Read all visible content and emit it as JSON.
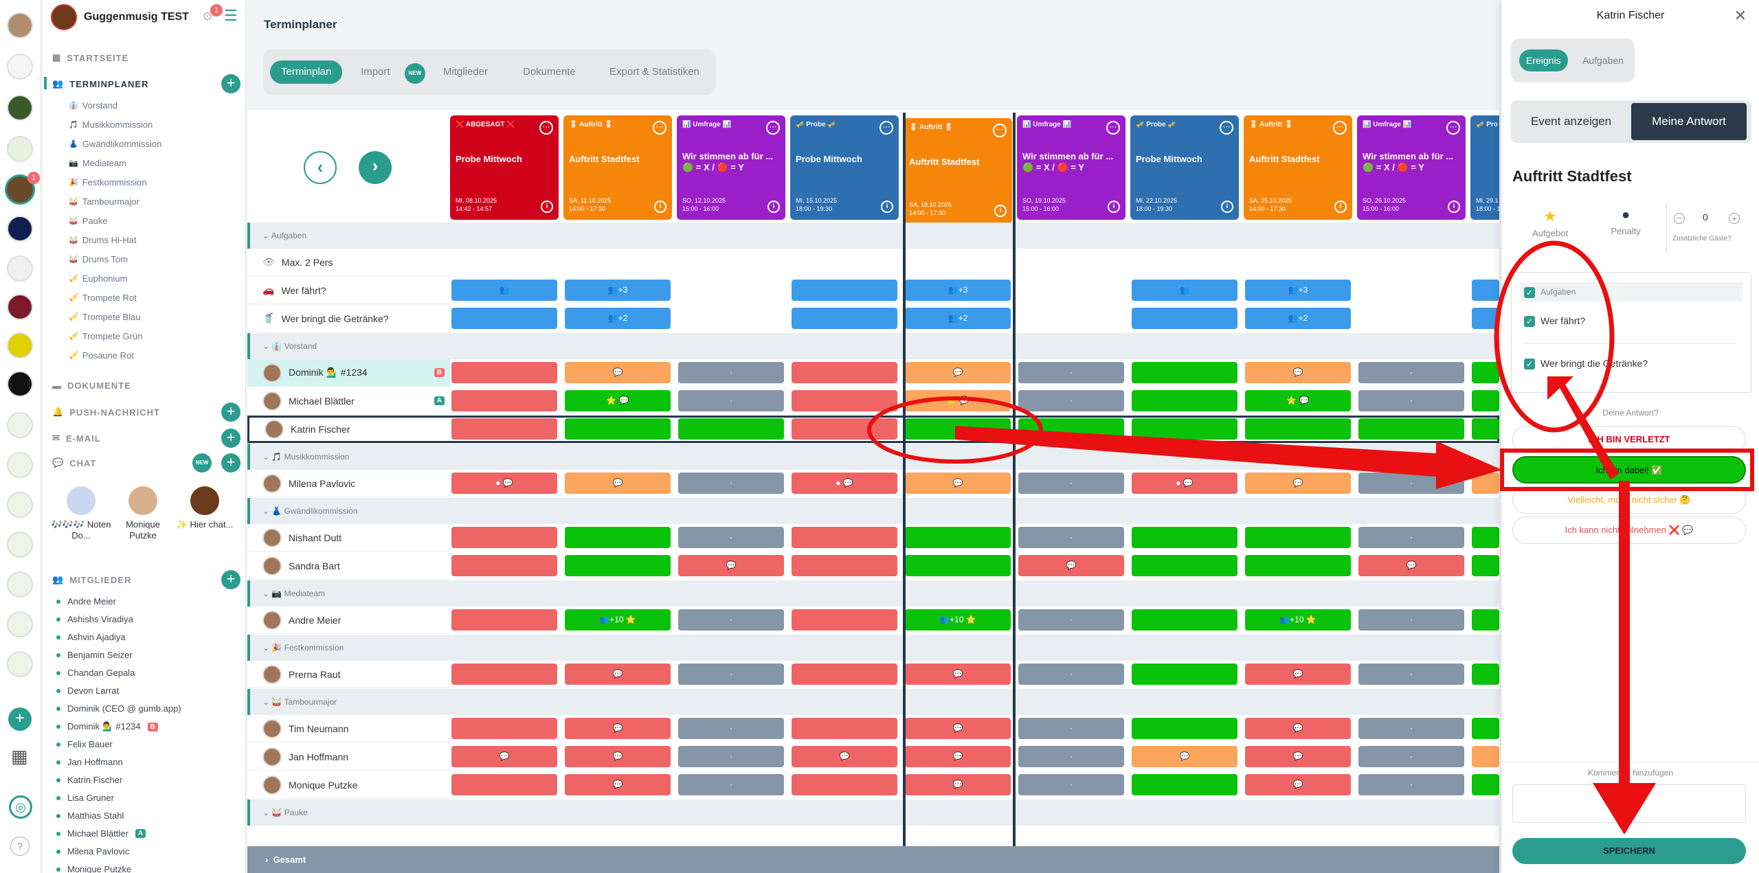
{
  "sidebar": {
    "app_name": "Guggenmusig TEST",
    "notification_count": "1",
    "nav": {
      "startseite": "STARTSEITE",
      "terminplaner": "TERMINPLANER",
      "dokumente": "DOKUMENTE",
      "push": "PUSH-NACHRICHT",
      "email": "E-MAIL",
      "chat": "CHAT",
      "chat_badge": "NEW",
      "mitglieder": "MITGLIEDER"
    },
    "sub_items": [
      "Vorstand",
      "Musikkommission",
      "Gwändlikommission",
      "Mediateam",
      "Festkommission",
      "Tambourmajor",
      "Pauke",
      "Drums Hi-Hat",
      "Drums Tom",
      "Euphonium",
      "Trompete Rot",
      "Trompete Blau",
      "Trompete Grün",
      "Posaune Rot"
    ],
    "chats": [
      {
        "name": "🎶🎶🎶 Noten Do..."
      },
      {
        "name": "Monique Putzke"
      },
      {
        "name": "✨ Hier chat..."
      }
    ],
    "members": [
      "Andre Meier",
      "Ashishs Viradiya",
      "Ashvin Ajadiya",
      "Benjamin Seizer",
      "Chandan Gepala",
      "Devon Larrat",
      "Dominik (CEO @ gumb.app)",
      "Dominik 💁‍♂️ #1234",
      "Felix Bauer",
      "Jan Hoffmann",
      "Katrin Fischer",
      "Lisa Gruner",
      "Matthias Stahl",
      "Michael Blättler",
      "Milena Pavlovic",
      "Monique Putzke"
    ],
    "member_tags": {
      "Dominik 💁‍♂️ #1234": "B",
      "Michael Blättler": "A"
    },
    "rail_badge": "1"
  },
  "main": {
    "title": "Terminplaner",
    "tabs": [
      "Terminplan",
      "Import",
      "Mitglieder",
      "Dokumente",
      "Export & Statistiken"
    ],
    "import_badge": "NEW"
  },
  "events": [
    {
      "tag": "❌ ABGESAGT ❌",
      "name": "Probe Mittwoch",
      "date": "MI, 08.10.2025",
      "time": "14:42 - 14:57",
      "color": "#d0021b"
    },
    {
      "tag": "🎖 Auftritt 🎖",
      "name": "Auftritt Stadtfest",
      "date": "SA, 11.10.2025",
      "time": "14:00 - 17:30",
      "color": "#f5860a"
    },
    {
      "tag": "📊 Umfrage 📊",
      "name": "Wir stimmen ab für ...\n🟢 = X / 🔴 = Y",
      "date": "SO, 12.10.2025",
      "time": "15:00 - 16:00",
      "color": "#9b1fc9"
    },
    {
      "tag": "🎺 Probe 🎺",
      "name": "Probe Mittwoch",
      "date": "MI, 15.10.2025",
      "time": "18:00 - 19:30",
      "color": "#2e6fb0"
    },
    {
      "tag": "🎖 Auftritt 🎖",
      "name": "Auftritt Stadtfest",
      "date": "SA, 18.10.2025",
      "time": "14:00 - 17:30",
      "color": "#f5860a"
    },
    {
      "tag": "📊 Umfrage 📊",
      "name": "Wir stimmen ab für ...\n🟢 = X / 🔴 = Y",
      "date": "SO, 19.10.2025",
      "time": "15:00 - 16:00",
      "color": "#9b1fc9"
    },
    {
      "tag": "🎺 Probe 🎺",
      "name": "Probe Mittwoch",
      "date": "MI, 22.10.2025",
      "time": "18:00 - 19:30",
      "color": "#2e6fb0"
    },
    {
      "tag": "🎖 Auftritt 🎖",
      "name": "Auftritt Stadtfest",
      "date": "SA, 25.10.2025",
      "time": "14:00 - 17:30",
      "color": "#f5860a"
    },
    {
      "tag": "📊 Umfrage 📊",
      "name": "Wir stimmen ab für ...\n🟢 = X / 🔴 = Y",
      "date": "SO, 26.10.2025",
      "time": "15:00 - 16:00",
      "color": "#9b1fc9"
    },
    {
      "tag": "🎺 Pro",
      "name": "",
      "date": "MI, 29.1",
      "time": "18:00 - 1",
      "color": "#2e6fb0"
    }
  ],
  "rows": [
    {
      "type": "group",
      "label": "Aufgaben"
    },
    {
      "type": "task",
      "label": "Max. 2 Pers",
      "cells": [
        "",
        "",
        "",
        "",
        "",
        "",
        "",
        "",
        "",
        ""
      ]
    },
    {
      "type": "task",
      "label": "Wer fährt?",
      "cells": [
        "b:👥",
        "b:👥+3",
        "",
        "b:",
        "b:👥+3",
        "",
        "b:👥",
        "b:👥+3",
        "",
        "b:"
      ]
    },
    {
      "type": "task",
      "label": "Wer bringt die Getränke?",
      "cells": [
        "b:",
        "b:👥+2",
        "",
        "b:",
        "b:👥+2",
        "",
        "b:",
        "b:👥+2",
        "",
        "b:"
      ]
    },
    {
      "type": "group",
      "label": "👔 Vorstand"
    },
    {
      "type": "member",
      "label": "Dominik 💁‍♂️ #1234",
      "tag": "B",
      "highlight": true,
      "cells": [
        "r:",
        "o:💬",
        "gy:·",
        "r:",
        "o:💬",
        "gy:·",
        "g:",
        "o:💬",
        "gy:·",
        "g:"
      ]
    },
    {
      "type": "member",
      "label": "Michael Blättler",
      "tag": "A",
      "cells": [
        "r:",
        "g:⭐ 💬",
        "gy:·",
        "r:",
        "o:⭐ 💬",
        "gy:·",
        "g:",
        "g:⭐ 💬",
        "gy:·",
        "g:"
      ]
    },
    {
      "type": "member",
      "label": "Katrin Fischer",
      "selected": true,
      "cells": [
        "r:",
        "g:",
        "g:",
        "r:",
        "g:",
        "g:",
        "g:",
        "g:",
        "g:",
        "g:"
      ]
    },
    {
      "type": "group",
      "label": "🎵 Musikkommission"
    },
    {
      "type": "member",
      "label": "Milena Pavlovic",
      "cells": [
        "r:● 💬",
        "o:💬",
        "gy:·",
        "r:● 💬",
        "o:💬",
        "gy:·",
        "r:● 💬",
        "o:💬",
        "gy:·",
        "o:"
      ]
    },
    {
      "type": "group",
      "label": "👗 Gwändlikommission"
    },
    {
      "type": "member",
      "label": "Nishant Dutt",
      "cells": [
        "r:",
        "g:",
        "gy:·",
        "r:",
        "g:",
        "gy:·",
        "g:",
        "g:",
        "gy:·",
        "g:"
      ]
    },
    {
      "type": "member",
      "label": "Sandra Bart",
      "cells": [
        "r:",
        "g:",
        "r:💬",
        "r:",
        "g:",
        "r:💬",
        "g:",
        "g:",
        "r:💬",
        "g:"
      ]
    },
    {
      "type": "group",
      "label": "📷 Mediateam"
    },
    {
      "type": "member",
      "label": "Andre Meier",
      "cells": [
        "r:",
        "g:👥+10 ⭐",
        "gy:·",
        "r:",
        "g:👥+10 ⭐",
        "gy:·",
        "g:",
        "g:👥+10 ⭐",
        "gy:·",
        "g:"
      ]
    },
    {
      "type": "group",
      "label": "🎉 Festkommission"
    },
    {
      "type": "member",
      "label": "Prerna Raut",
      "cells": [
        "r:",
        "r:💬",
        "gy:·",
        "r:",
        "r:💬",
        "gy:·",
        "g:",
        "r:💬",
        "gy:·",
        "g:"
      ]
    },
    {
      "type": "group",
      "label": "🥁 Tambourmajor"
    },
    {
      "type": "member",
      "label": "Tim Neumann",
      "cells": [
        "r:",
        "r:💬",
        "gy:·",
        "r:",
        "r:💬",
        "gy:·",
        "g:",
        "r:💬",
        "gy:·",
        "g:"
      ]
    },
    {
      "type": "member",
      "label": "Jan Hoffmann",
      "cells": [
        "r:💬",
        "r:💬",
        "gy:·",
        "r:💬",
        "r:💬",
        "gy:·",
        "o:💬",
        "r:💬",
        "gy:·",
        "o:"
      ]
    },
    {
      "type": "member",
      "label": "Monique Putzke",
      "cells": [
        "r:",
        "r:💬",
        "gy:·",
        "r:",
        "r:💬",
        "gy:·",
        "g:",
        "r:💬",
        "gy:·",
        "g:"
      ]
    },
    {
      "type": "group",
      "label": "🥁 Pauke"
    }
  ],
  "footer_label": "Gesamt",
  "panel": {
    "title": "Katrin Fischer",
    "tabs": [
      "Ereignis",
      "Aufgaben"
    ],
    "toggle": [
      "Event anzeigen",
      "Meine Antwort"
    ],
    "event_title": "Auftritt Stadtfest",
    "metrics": [
      {
        "label": "Aufgebot",
        "icon": "⭐"
      },
      {
        "label": "Penalty",
        "icon": "●"
      },
      {
        "label": "Zusätzliche Gäste?",
        "value": "0"
      }
    ],
    "tasks_header": "Aufgaben",
    "tasks": [
      "Wer fährt?",
      "Wer bringt die Getränke?"
    ],
    "answer_question": "Deine Antwort?",
    "answers": [
      {
        "label": "ICH BIN VERLETZT",
        "color": "#d0021b"
      },
      {
        "label": "Ich bin dabei! ✅",
        "color": "#111",
        "selected": true
      },
      {
        "label": "Vielleicht, muss nicht sicher 🤔",
        "color": "#f5a623"
      },
      {
        "label": "Ich kann nicht teilnehmen ❌ 💬",
        "color": "#e05050"
      }
    ],
    "comment_label": "Kommentar hinzufügen",
    "save": "SPEICHERN"
  }
}
